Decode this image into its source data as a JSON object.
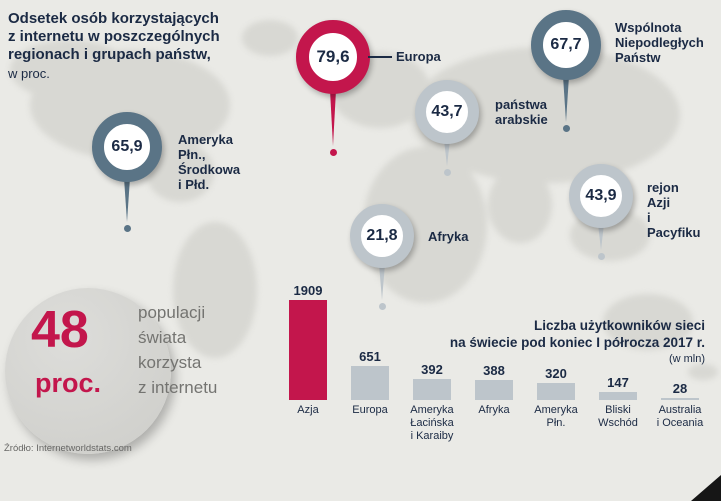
{
  "page": {
    "title_bold": "Odsetek osób korzystających\nz internetu w poszczególnych\nregionach i grupach państw,",
    "title_unit": "w proc.",
    "source": "Źródło: Internetworldstats.com"
  },
  "colors": {
    "accent_red": "#c3164c",
    "dark_slate": "#5a7486",
    "light_gray_blue": "#bdc5cb",
    "navy_text": "#1b2a44",
    "background": "#eaeae6"
  },
  "map_pins": [
    {
      "value": "79,6",
      "label": "Europa",
      "color": "#c3164c"
    },
    {
      "value": "67,7",
      "label": "Wspólnota\nNiepodległych\nPaństw",
      "color": "#5a7486"
    },
    {
      "value": "43,7",
      "label": "państwa\narabskie",
      "color": "#bdc5cb"
    },
    {
      "value": "65,9",
      "label": "Ameryka Płn.,\nŚrodkowa i Płd.",
      "color": "#5a7486"
    },
    {
      "value": "43,9",
      "label": "rejon Azji\ni Pacyfiku",
      "color": "#bdc5cb"
    },
    {
      "value": "21,8",
      "label": "Afryka",
      "color": "#bdc5cb"
    }
  ],
  "stat": {
    "number": "48",
    "unit": "proc.",
    "description": "populacji\nświata\nkorzysta\nz internetu"
  },
  "chart_data": {
    "type": "bar",
    "title": "Liczba użytkowników sieci\nna świecie pod koniec I półrocza 2017 r.",
    "unit_note": "(w mln)",
    "categories": [
      "Azja",
      "Europa",
      "Ameryka Łacińska i Karaiby",
      "Afryka",
      "Ameryka Płn.",
      "Bliski Wschód",
      "Australia i Oceania"
    ],
    "category_display": [
      "Azja",
      "Europa",
      "Ameryka\nŁacińska\ni Karaiby",
      "Afryka",
      "Ameryka\nPłn.",
      "Bliski\nWschód",
      "Australia\ni Oceania"
    ],
    "values": [
      1909,
      651,
      392,
      388,
      320,
      147,
      28
    ],
    "bar_colors": [
      "#c3164c",
      "#bdc5cb",
      "#bdc5cb",
      "#bdc5cb",
      "#bdc5cb",
      "#bdc5cb",
      "#bdc5cb"
    ],
    "ylim": [
      0,
      1909
    ],
    "legend": "none",
    "grid": false
  }
}
